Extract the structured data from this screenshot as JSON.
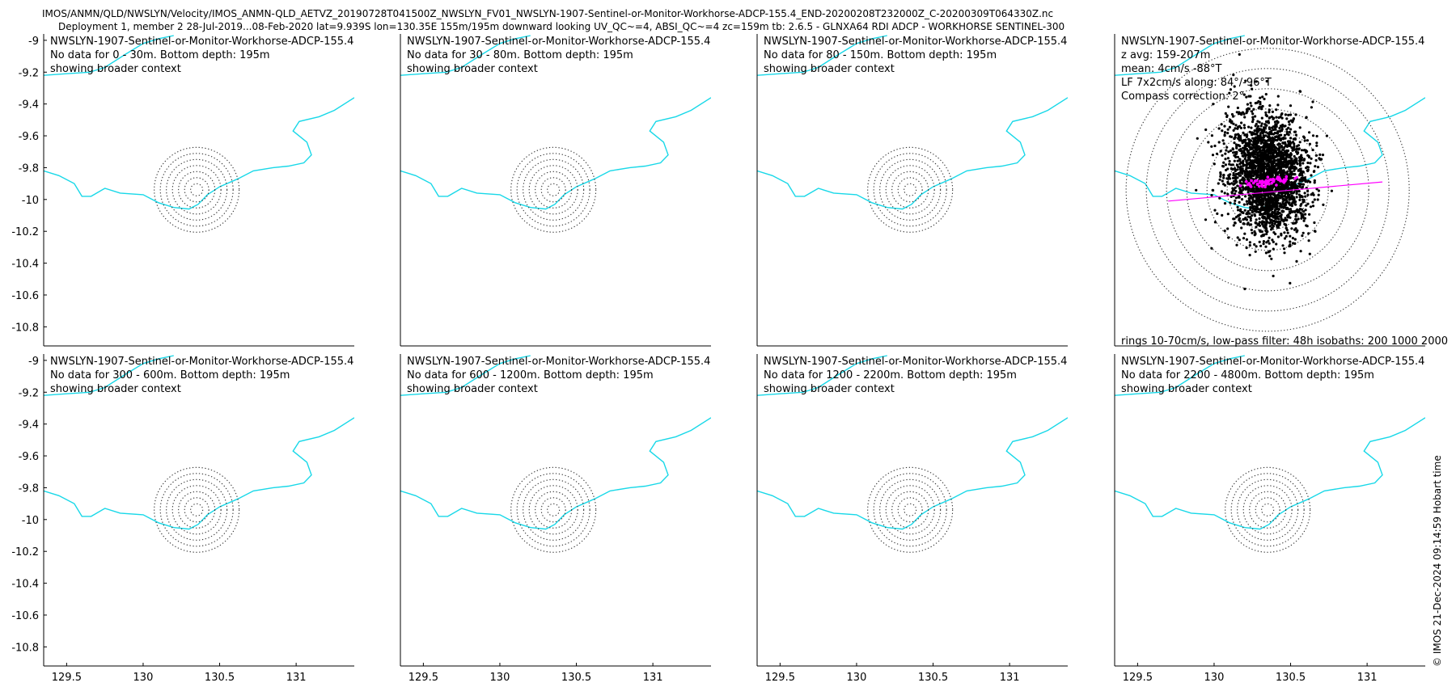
{
  "figure": {
    "title_line1": "IMOS/ANMN/QLD/NWSLYN/Velocity/IMOS_ANMN-QLD_AETVZ_20190728T041500Z_NWSLYN_FV01_NWSLYN-1907-Sentinel-or-Monitor-Workhorse-ADCP-155.4_END-20200208T232000Z_C-20200309T064330Z.nc",
    "title_line2": "Deployment 1, member 2 28-Jul-2019...08-Feb-2020 lat=9.939S lon=130.35E 155m/195m downward looking UV_QC~=4, ABSI_QC~=4 zc=159m tb: 2.6.5 - GLNXA64 RDI ADCP - WORKHORSE SENTINEL-300",
    "credit": "© IMOS 21-Dec-2024 09:14:59 Hobart time"
  },
  "colors": {
    "coast": "#18d8e8",
    "rings": "#333333",
    "scatter": "#000000",
    "lowpass": "#ff00ff",
    "axis": "#000000"
  },
  "chart_data": [
    {
      "type": "map",
      "panel": 1,
      "instrument": "NWSLYN-1907-Sentinel-or-Monitor-Workhorse-ADCP-155.4",
      "line2": "No data for 0 - 30m. Bottom depth: 195m",
      "line3": "showing broader context",
      "xlim": [
        129.35,
        131.38
      ],
      "ylim": [
        -10.92,
        -8.96
      ],
      "yticks": [
        -9,
        -9.2,
        -9.4,
        -9.6,
        -9.8,
        -10,
        -10.2,
        -10.4,
        -10.6,
        -10.8
      ],
      "xticks": [],
      "show_yticks": true,
      "show_xticks": false
    },
    {
      "type": "map",
      "panel": 2,
      "instrument": "NWSLYN-1907-Sentinel-or-Monitor-Workhorse-ADCP-155.4",
      "line2": "No data for 30 - 80m. Bottom depth: 195m",
      "line3": "showing broader context",
      "xlim": [
        129.35,
        131.38
      ],
      "ylim": [
        -10.92,
        -8.96
      ],
      "yticks": [],
      "xticks": [],
      "show_yticks": false,
      "show_xticks": false
    },
    {
      "type": "map",
      "panel": 3,
      "instrument": "NWSLYN-1907-Sentinel-or-Monitor-Workhorse-ADCP-155.4",
      "line2": "No data for 80 - 150m. Bottom depth: 195m",
      "line3": "showing broader context",
      "xlim": [
        129.35,
        131.38
      ],
      "ylim": [
        -10.92,
        -8.96
      ],
      "yticks": [],
      "xticks": [],
      "show_yticks": false,
      "show_xticks": false
    },
    {
      "type": "scatter",
      "panel": 4,
      "instrument": "NWSLYN-1907-Sentinel-or-Monitor-Workhorse-ADCP-155.4",
      "lines": [
        "z avg: 159-207m",
        "mean: 4cm/s -88°T",
        "LF 7x2cm/s along: 84°/-96°T",
        "Compass correction: 2°"
      ],
      "lf_prefix": "LF",
      "footer": "rings 10-70cm/s, low-pass filter: 48h isobaths: 200 1000 2000",
      "xlim": [
        129.35,
        131.38
      ],
      "ylim": [
        -10.92,
        -8.96
      ],
      "yticks": [],
      "xticks": [],
      "show_yticks": false,
      "show_xticks": false,
      "rings_cm_s": [
        10,
        20,
        30,
        40,
        50,
        60,
        70
      ],
      "current_mean_cm_s": 4,
      "current_mean_dir_degT": -88,
      "lowpass_axis_degT": 84
    },
    {
      "type": "map",
      "panel": 5,
      "instrument": "NWSLYN-1907-Sentinel-or-Monitor-Workhorse-ADCP-155.4",
      "line2": "No data for 300 - 600m. Bottom depth: 195m",
      "line3": "showing broader context",
      "xlim": [
        129.35,
        131.38
      ],
      "ylim": [
        -10.92,
        -8.96
      ],
      "yticks": [
        -9,
        -9.2,
        -9.4,
        -9.6,
        -9.8,
        -10,
        -10.2,
        -10.4,
        -10.6,
        -10.8
      ],
      "xticks": [
        129.5,
        130,
        130.5,
        131
      ],
      "show_yticks": true,
      "show_xticks": true
    },
    {
      "type": "map",
      "panel": 6,
      "instrument": "NWSLYN-1907-Sentinel-or-Monitor-Workhorse-ADCP-155.4",
      "line2": "No data for 600 - 1200m. Bottom depth: 195m",
      "line3": "showing broader context",
      "xlim": [
        129.35,
        131.38
      ],
      "ylim": [
        -10.92,
        -8.96
      ],
      "yticks": [],
      "xticks": [
        129.5,
        130,
        130.5,
        131
      ],
      "show_yticks": false,
      "show_xticks": true
    },
    {
      "type": "map",
      "panel": 7,
      "instrument": "NWSLYN-1907-Sentinel-or-Monitor-Workhorse-ADCP-155.4",
      "line2": "No data for 1200 - 2200m. Bottom depth: 195m",
      "line3": "showing broader context",
      "xlim": [
        129.35,
        131.38
      ],
      "ylim": [
        -10.92,
        -8.96
      ],
      "yticks": [],
      "xticks": [
        129.5,
        130,
        130.5,
        131
      ],
      "show_yticks": false,
      "show_xticks": true
    },
    {
      "type": "map",
      "panel": 8,
      "instrument": "NWSLYN-1907-Sentinel-or-Monitor-Workhorse-ADCP-155.4",
      "line2": "No data for 2200 - 4800m. Bottom depth: 195m",
      "line3": "showing broader context",
      "xlim": [
        129.35,
        131.38
      ],
      "ylim": [
        -10.92,
        -8.96
      ],
      "yticks": [],
      "xticks": [
        129.5,
        130,
        130.5,
        131
      ],
      "show_yticks": false,
      "show_xticks": true
    }
  ],
  "coastline": {
    "isobath_west": [
      [
        129.35,
        -9.82
      ],
      [
        129.45,
        -9.85
      ],
      [
        129.55,
        -9.9
      ],
      [
        129.6,
        -9.98
      ],
      [
        129.66,
        -9.98
      ],
      [
        129.75,
        -9.93
      ],
      [
        129.85,
        -9.96
      ],
      [
        130.0,
        -9.97
      ],
      [
        130.1,
        -10.02
      ],
      [
        130.2,
        -10.05
      ],
      [
        130.3,
        -10.06
      ],
      [
        130.36,
        -10.03
      ],
      [
        130.42,
        -9.97
      ],
      [
        130.5,
        -9.92
      ],
      [
        130.62,
        -9.87
      ],
      [
        130.72,
        -9.82
      ],
      [
        130.85,
        -9.8
      ],
      [
        130.95,
        -9.79
      ],
      [
        131.05,
        -9.77
      ],
      [
        131.1,
        -9.72
      ],
      [
        131.07,
        -9.64
      ],
      [
        130.98,
        -9.57
      ],
      [
        131.02,
        -9.51
      ],
      [
        131.15,
        -9.48
      ],
      [
        131.25,
        -9.44
      ],
      [
        131.38,
        -9.36
      ]
    ],
    "isobath_north": [
      [
        129.35,
        -9.22
      ],
      [
        129.5,
        -9.21
      ],
      [
        129.65,
        -9.2
      ],
      [
        129.75,
        -9.17
      ],
      [
        129.88,
        -9.09
      ],
      [
        130.0,
        -9.02
      ],
      [
        130.1,
        -8.99
      ],
      [
        130.2,
        -8.97
      ]
    ]
  }
}
